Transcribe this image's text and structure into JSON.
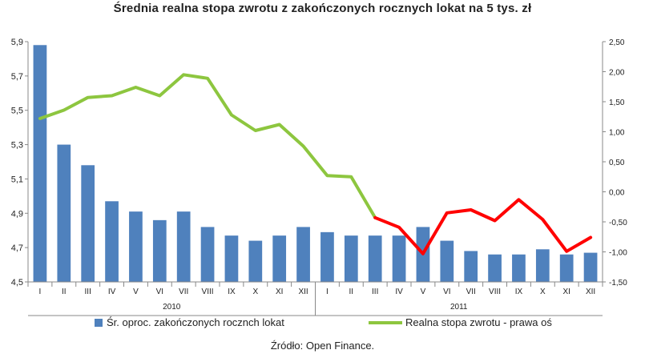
{
  "chart_data": {
    "type": "bar",
    "title": "Średnia realna stopa zwrotu z zakończonych rocznych lokat na 5 tys. zł",
    "source": "Źródło: Open Finance.",
    "categories": [
      "I",
      "II",
      "III",
      "IV",
      "V",
      "VI",
      "VII",
      "VIII",
      "IX",
      "X",
      "XI",
      "XII",
      "I",
      "II",
      "III",
      "IV",
      "V",
      "VI",
      "VII",
      "VIII",
      "IX",
      "X",
      "XI",
      "XII"
    ],
    "groups": [
      {
        "label": "2010",
        "start": 0,
        "end": 11
      },
      {
        "label": "2011",
        "start": 12,
        "end": 23
      }
    ],
    "left_axis": {
      "min": 4.5,
      "max": 5.9,
      "ticks": [
        "4,5",
        "4,7",
        "4,9",
        "5,1",
        "5,3",
        "5,5",
        "5,7",
        "5,9"
      ],
      "tick_values": [
        4.5,
        4.7,
        4.9,
        5.1,
        5.3,
        5.5,
        5.7,
        5.9
      ]
    },
    "right_axis": {
      "min": -1.5,
      "max": 2.5,
      "ticks": [
        "-1,50",
        "-1,00",
        "-0,50",
        "0,00",
        "0,50",
        "1,00",
        "1,50",
        "2,00",
        "2,50"
      ],
      "tick_values": [
        -1.5,
        -1.0,
        -0.5,
        0.0,
        0.5,
        1.0,
        1.5,
        2.0,
        2.5
      ]
    },
    "series": [
      {
        "name": "Śr. oproc. zakończonych rocznch lokat",
        "kind": "bar",
        "axis": "left",
        "color": "#4f81bd",
        "values": [
          5.88,
          5.3,
          5.18,
          4.97,
          4.91,
          4.86,
          4.91,
          4.82,
          4.77,
          4.74,
          4.77,
          4.82,
          4.79,
          4.77,
          4.77,
          4.77,
          4.82,
          4.74,
          4.68,
          4.66,
          4.66,
          4.69,
          4.66,
          4.67
        ]
      },
      {
        "name": "Realna stopa zwrotu - prawa oś",
        "kind": "line",
        "axis": "right",
        "color": "#8dc63f",
        "highlight_color": "#ff0000",
        "highlight_from_index": 14,
        "values": [
          1.22,
          1.36,
          1.57,
          1.6,
          1.74,
          1.6,
          1.95,
          1.89,
          1.28,
          1.02,
          1.12,
          0.76,
          0.27,
          0.25,
          -0.43,
          -0.59,
          -1.03,
          -0.35,
          -0.3,
          -0.48,
          -0.13,
          -0.46,
          -0.99,
          -0.76
        ]
      }
    ],
    "legend_position": "bottom",
    "grid": false
  }
}
